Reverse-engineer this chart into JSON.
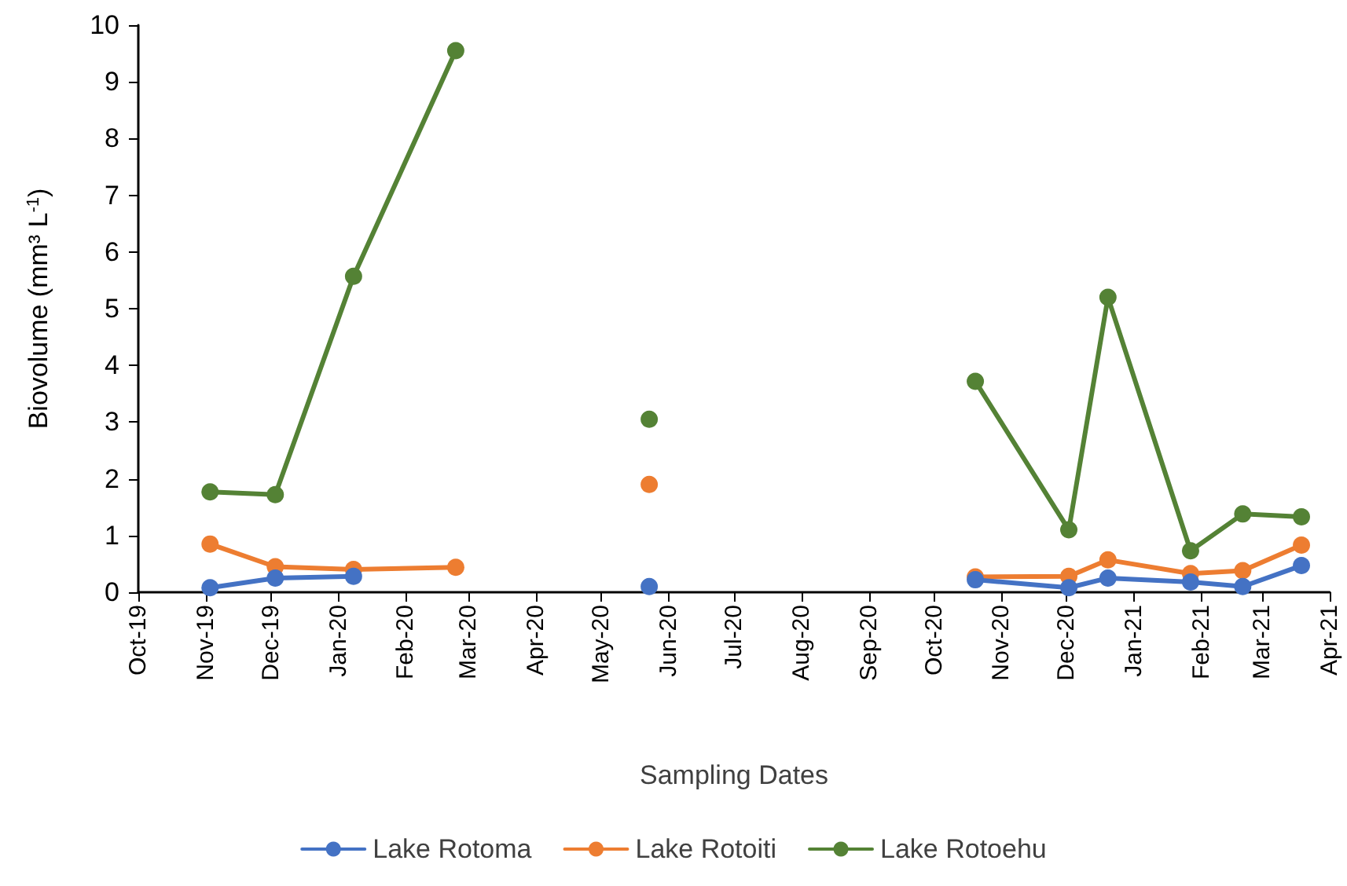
{
  "chart_data": {
    "type": "line",
    "xlabel": "Sampling Dates",
    "ylabel": "Biovolume (mm³ L$^{-1}$)",
    "x": [
      "2019-11-03",
      "2019-12-03",
      "2020-01-08",
      "2020-02-24",
      "2020-04-10",
      "2020-05-23",
      "2020-08-15",
      "2020-10-20",
      "2020-12-02",
      "2020-12-20",
      "2021-01-27",
      "2021-02-20",
      "2021-03-19"
    ],
    "series": [
      {
        "name": "Lake Rotoma",
        "color": "#4472c4",
        "values": [
          0.08,
          0.25,
          0.28,
          null,
          null,
          0.1,
          null,
          0.22,
          0.08,
          0.25,
          0.18,
          0.1,
          0.47
        ]
      },
      {
        "name": "Lake Rotoiti",
        "color": "#ed7d31",
        "values": [
          0.85,
          0.45,
          0.4,
          0.44,
          null,
          1.9,
          null,
          0.27,
          0.28,
          0.57,
          0.33,
          0.38,
          0.83
        ]
      },
      {
        "name": "Lake Rotoehu",
        "color": "#548235",
        "values": [
          1.77,
          1.72,
          5.57,
          9.55,
          null,
          3.05,
          null,
          3.72,
          1.1,
          5.2,
          0.73,
          1.38,
          1.33
        ]
      }
    ],
    "xlim": [
      "2019-10-01",
      "2021-04-01"
    ],
    "xticks": [
      {
        "value": "2019-10-01",
        "label": "Oct-19"
      },
      {
        "value": "2019-11-01",
        "label": "Nov-19"
      },
      {
        "value": "2019-12-01",
        "label": "Dec-19"
      },
      {
        "value": "2020-01-01",
        "label": "Jan-20"
      },
      {
        "value": "2020-02-01",
        "label": "Feb-20"
      },
      {
        "value": "2020-03-01",
        "label": "Mar-20"
      },
      {
        "value": "2020-04-01",
        "label": "Apr-20"
      },
      {
        "value": "2020-05-01",
        "label": "May-20"
      },
      {
        "value": "2020-06-01",
        "label": "Jun-20"
      },
      {
        "value": "2020-07-01",
        "label": "Jul-20"
      },
      {
        "value": "2020-08-01",
        "label": "Aug-20"
      },
      {
        "value": "2020-09-01",
        "label": "Sep-20"
      },
      {
        "value": "2020-10-01",
        "label": "Oct-20"
      },
      {
        "value": "2020-11-01",
        "label": "Nov-20"
      },
      {
        "value": "2020-12-01",
        "label": "Dec-20"
      },
      {
        "value": "2021-01-01",
        "label": "Jan-21"
      },
      {
        "value": "2021-02-01",
        "label": "Feb-21"
      },
      {
        "value": "2021-03-01",
        "label": "Mar-21"
      },
      {
        "value": "2021-04-01",
        "label": "Apr-21"
      }
    ],
    "ylim": [
      0,
      10
    ],
    "yticks": [
      0,
      1,
      2,
      3,
      4,
      5,
      6,
      7,
      8,
      9,
      10
    ],
    "grid": false,
    "legend": "bottom",
    "marker": "circle",
    "line_style": "solid"
  }
}
